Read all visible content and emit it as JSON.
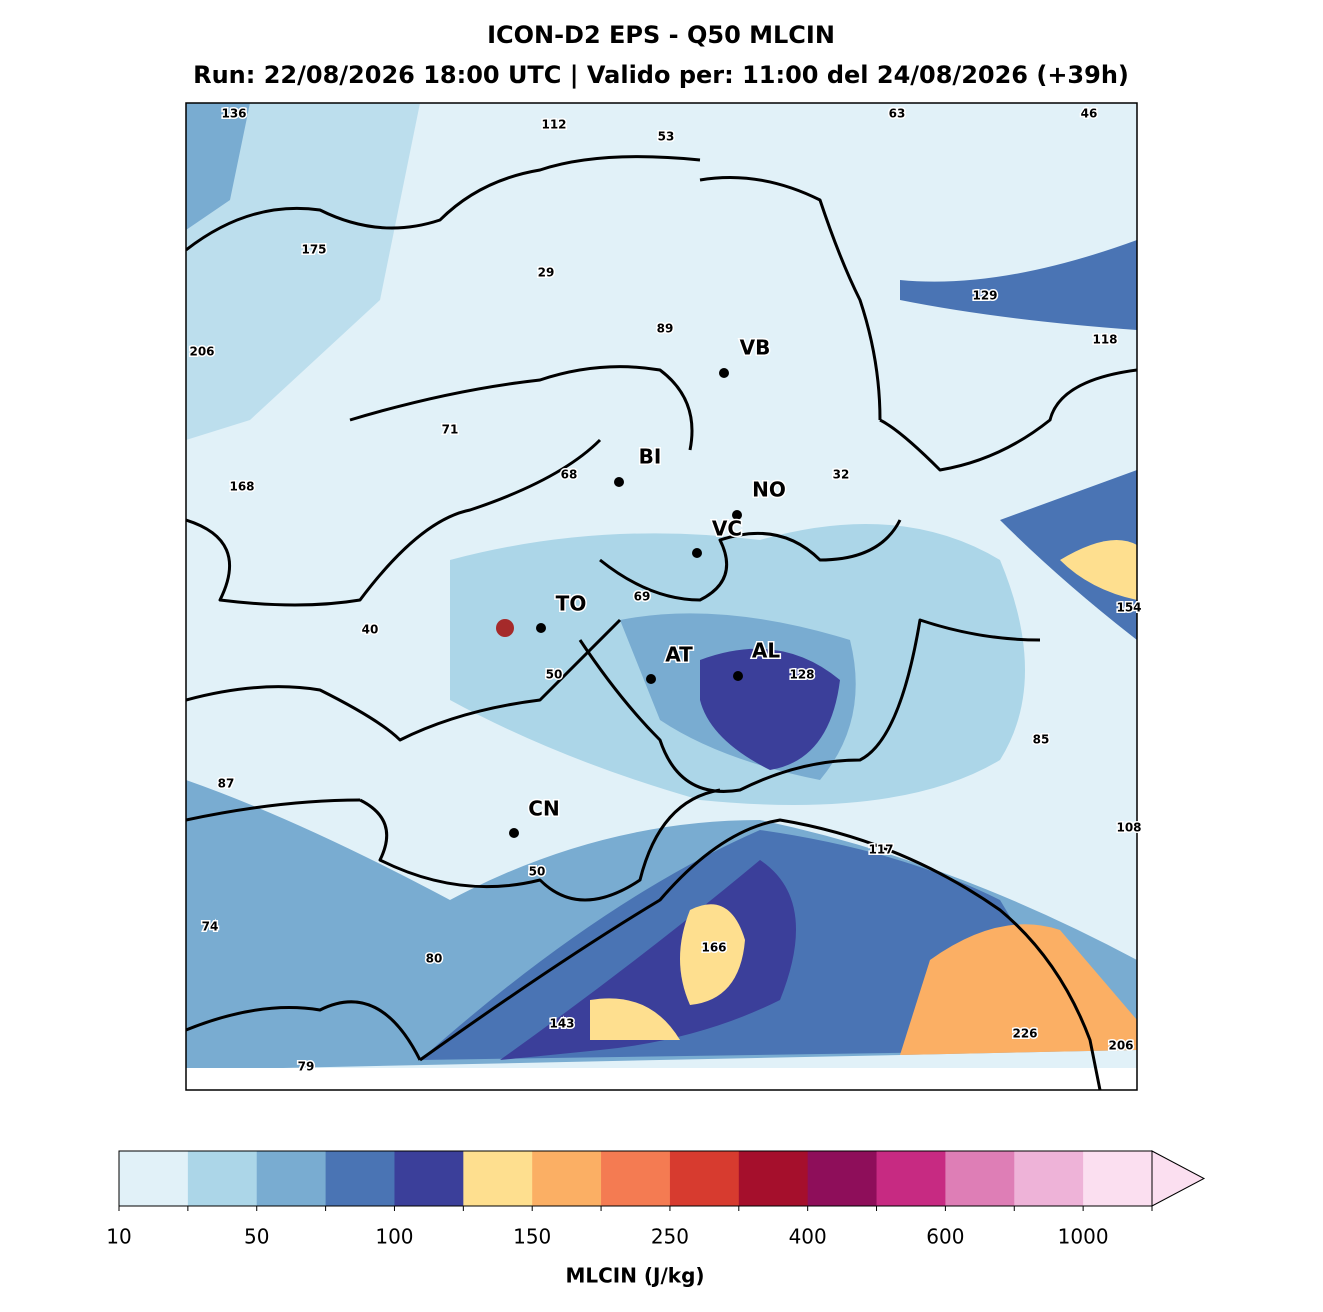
{
  "title": "ICON-D2 EPS - Q50 MLCIN",
  "subtitle": "Run: 22/08/2026 18:00 UTC | Valido per: 11:00 del 24/08/2026 (+39h)",
  "map_values": [
    136,
    112,
    53,
    63,
    46,
    175,
    29,
    129,
    89,
    118,
    206,
    71,
    168,
    68,
    32,
    69,
    154,
    40,
    50,
    128,
    85,
    87,
    108,
    117,
    50,
    74,
    166,
    80,
    143,
    226,
    206,
    79
  ],
  "cities": [
    "VB",
    "BI",
    "NO",
    "VC",
    "TO",
    "AT",
    "AL",
    "CN"
  ],
  "colorbar": {
    "label": "MLCIN (J/kg)",
    "ticks": [
      10,
      50,
      100,
      150,
      250,
      400,
      600,
      1000
    ],
    "colors": [
      "#e1f1f8",
      "#acd6e8",
      "#79acd1",
      "#4a74b4",
      "#3b3f9a",
      "#fedf8f",
      "#fbaf64",
      "#f47b52",
      "#d73b2f",
      "#a50f2c",
      "#8e0e5a",
      "#c72a82",
      "#de7eb6",
      "#eeb3d8",
      "#fbdff0"
    ]
  }
}
